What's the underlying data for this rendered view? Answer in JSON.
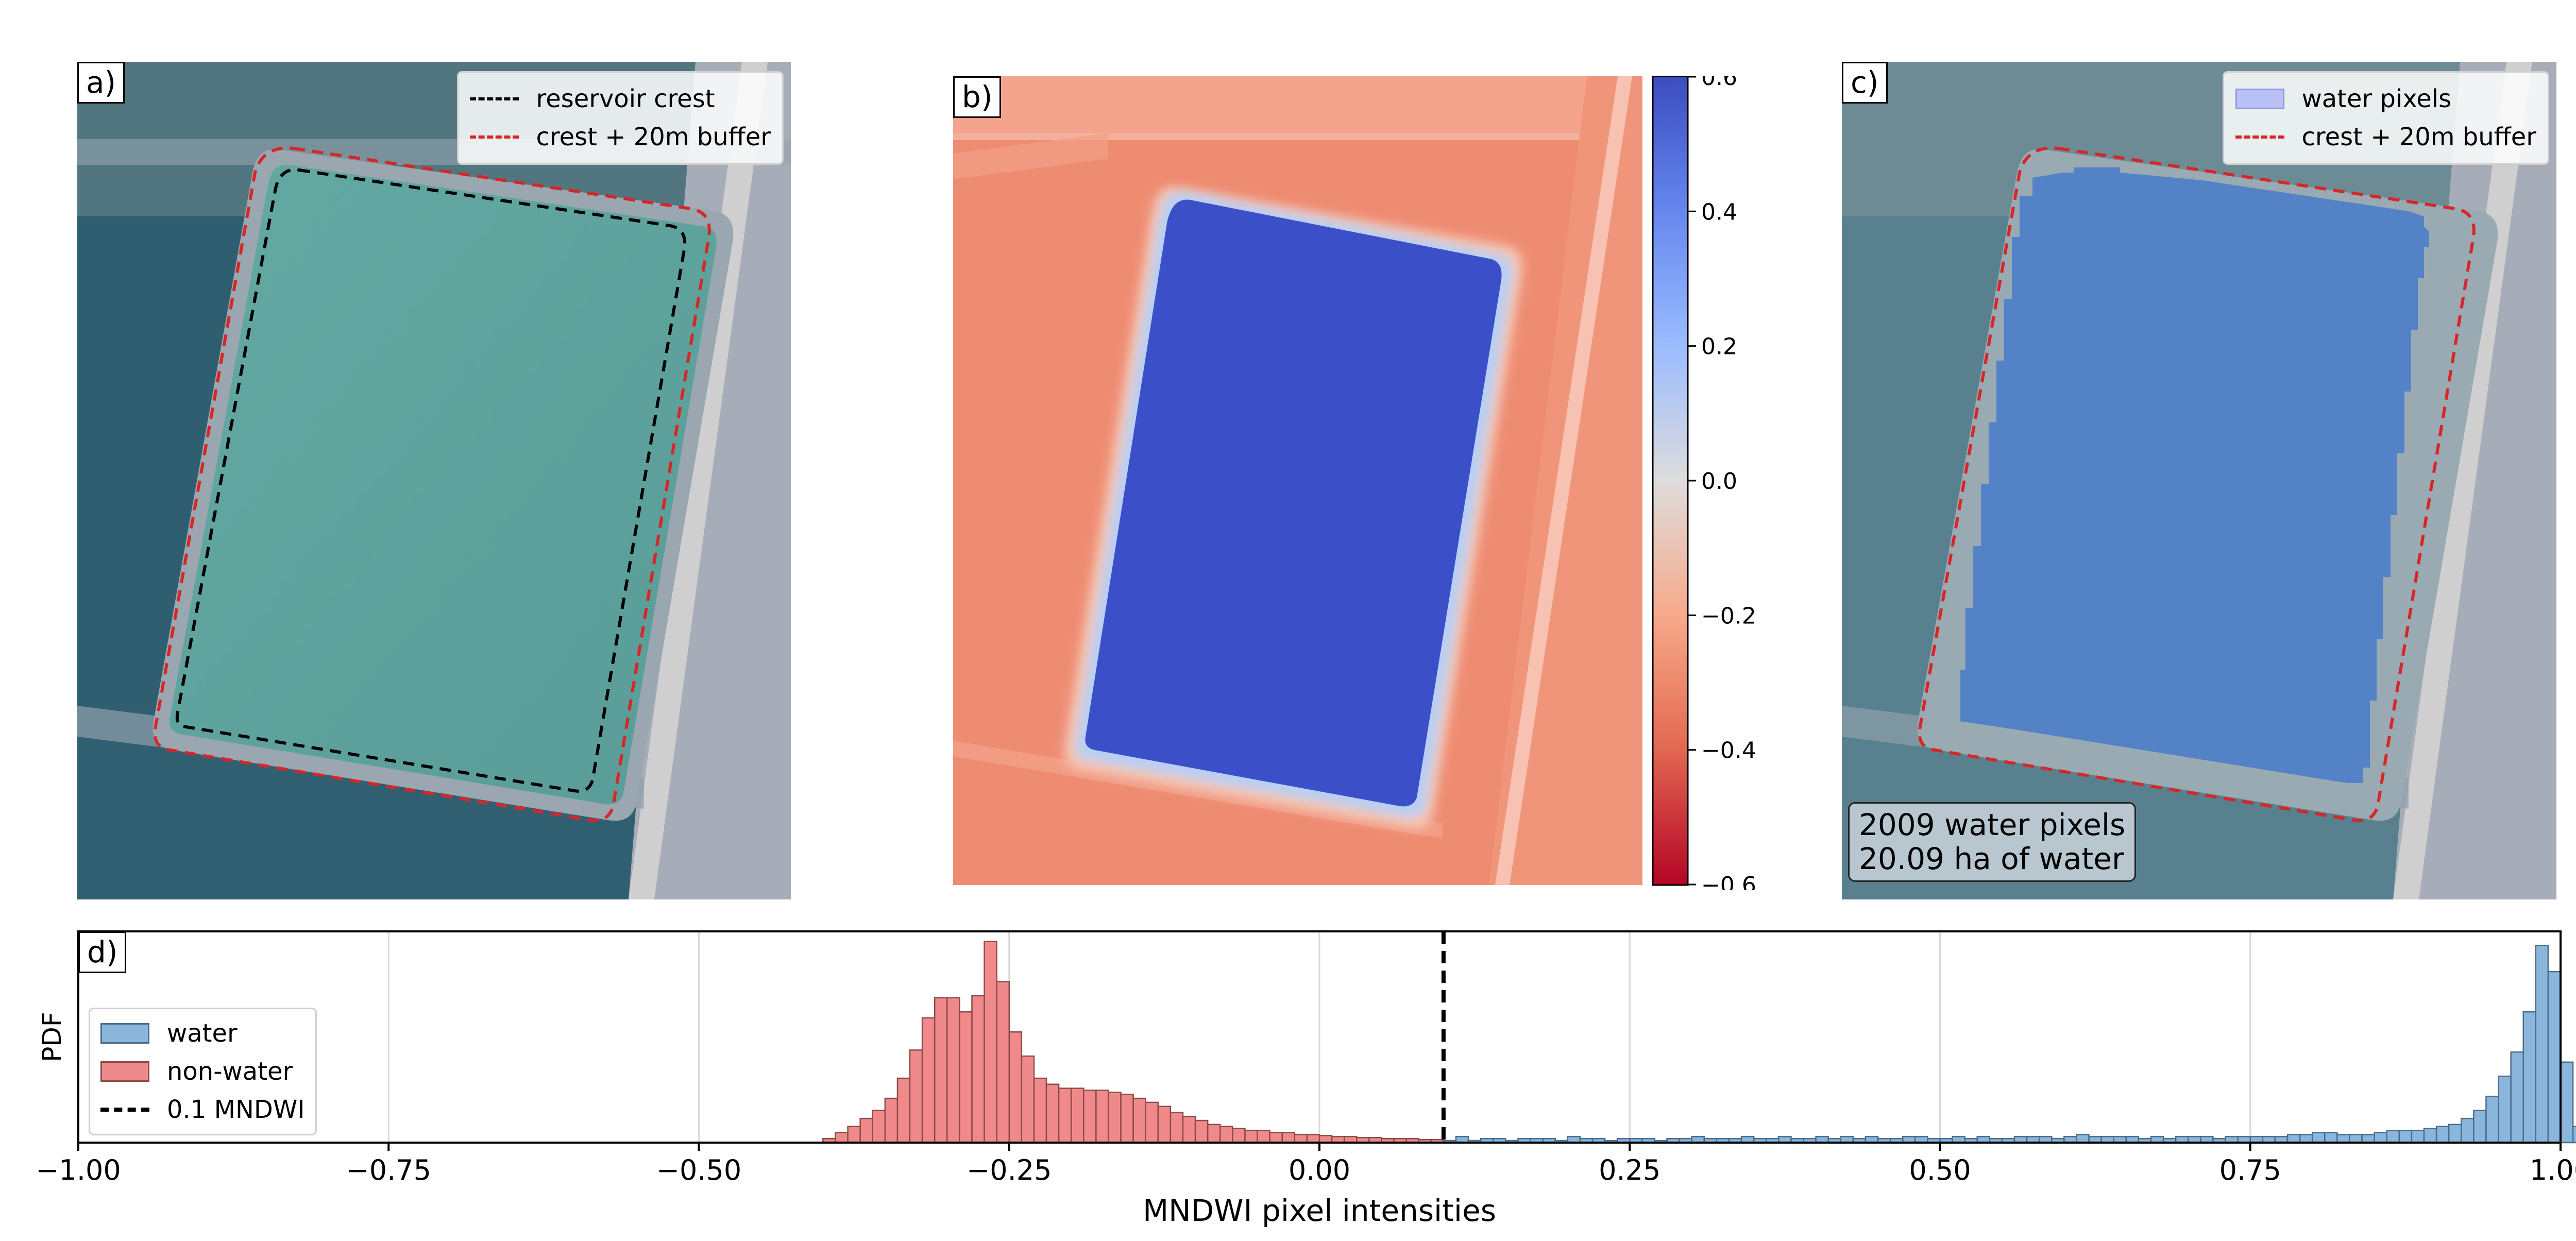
{
  "panels": {
    "a": {
      "tag": "a)",
      "legend": [
        {
          "label": "reservoir crest",
          "color": "#000000",
          "style": "dashed"
        },
        {
          "label": "crest + 20m buffer",
          "color": "#d62728",
          "style": "dashed"
        }
      ]
    },
    "b": {
      "tag": "b)",
      "colormap": "coolwarm_r",
      "colorbar": {
        "min": -0.6,
        "max": 0.6,
        "ticks": [
          "0.6",
          "0.4",
          "0.2",
          "0.0",
          "−0.2",
          "−0.4",
          "−0.6"
        ]
      }
    },
    "c": {
      "tag": "c)",
      "legend": [
        {
          "label": "water pixels",
          "color": "#9aa8f0",
          "style": "box"
        },
        {
          "label": "crest + 20m buffer",
          "color": "#d62728",
          "style": "dashed"
        }
      ],
      "info": {
        "line1": "2009 water pixels",
        "line2": "20.09 ha of water"
      }
    }
  },
  "chart_data": {
    "type": "bar",
    "tag": "d)",
    "xlabel": "MNDWI pixel intensities",
    "ylabel": "PDF",
    "xlim": [
      -1.0,
      1.0
    ],
    "xticks": [
      -1.0,
      -0.75,
      -0.5,
      -0.25,
      0.0,
      0.25,
      0.5,
      0.75,
      1.0
    ],
    "xtick_labels": [
      "−1.00",
      "−0.75",
      "−0.50",
      "−0.25",
      "0.00",
      "0.25",
      "0.50",
      "0.75",
      "1.00"
    ],
    "grid": "vertical",
    "legend_position": "left",
    "threshold": {
      "value": 0.1,
      "label": "0.1 MNDWI",
      "color": "#000000"
    },
    "bin_width": 0.01,
    "series": [
      {
        "name": "non-water",
        "color": "#f08a8a",
        "bin_start": -0.4,
        "values": [
          0.2,
          0.5,
          0.8,
          1.2,
          1.6,
          2.2,
          3.2,
          4.6,
          6.2,
          7.2,
          7.2,
          6.5,
          7.3,
          10.0,
          8.0,
          5.5,
          4.3,
          3.2,
          2.9,
          2.7,
          2.7,
          2.6,
          2.6,
          2.5,
          2.4,
          2.2,
          2.0,
          1.8,
          1.5,
          1.3,
          1.1,
          0.9,
          0.8,
          0.7,
          0.6,
          0.6,
          0.5,
          0.5,
          0.4,
          0.4,
          0.35,
          0.3,
          0.3,
          0.25,
          0.25,
          0.2,
          0.2,
          0.2,
          0.15,
          0.15,
          0.1,
          0.1,
          0.1,
          0.1,
          0.08,
          0.06,
          0.05,
          0.04
        ]
      },
      {
        "name": "water",
        "color": "#8ab6dc",
        "bin_start": 0.1,
        "values": [
          0.1,
          0.3,
          0.1,
          0.2,
          0.2,
          0.1,
          0.2,
          0.2,
          0.2,
          0.1,
          0.3,
          0.2,
          0.2,
          0.1,
          0.2,
          0.2,
          0.2,
          0.1,
          0.2,
          0.2,
          0.3,
          0.2,
          0.2,
          0.2,
          0.3,
          0.2,
          0.2,
          0.3,
          0.2,
          0.2,
          0.3,
          0.2,
          0.3,
          0.2,
          0.3,
          0.2,
          0.2,
          0.3,
          0.3,
          0.2,
          0.2,
          0.3,
          0.2,
          0.3,
          0.2,
          0.2,
          0.3,
          0.3,
          0.3,
          0.2,
          0.3,
          0.4,
          0.3,
          0.3,
          0.3,
          0.3,
          0.2,
          0.3,
          0.2,
          0.3,
          0.3,
          0.3,
          0.2,
          0.3,
          0.3,
          0.3,
          0.3,
          0.3,
          0.4,
          0.4,
          0.5,
          0.5,
          0.4,
          0.4,
          0.4,
          0.5,
          0.6,
          0.6,
          0.6,
          0.7,
          0.8,
          0.9,
          1.2,
          1.6,
          2.3,
          3.3,
          4.5,
          6.5,
          9.8,
          8.5,
          4.0,
          0.8
        ]
      }
    ]
  }
}
